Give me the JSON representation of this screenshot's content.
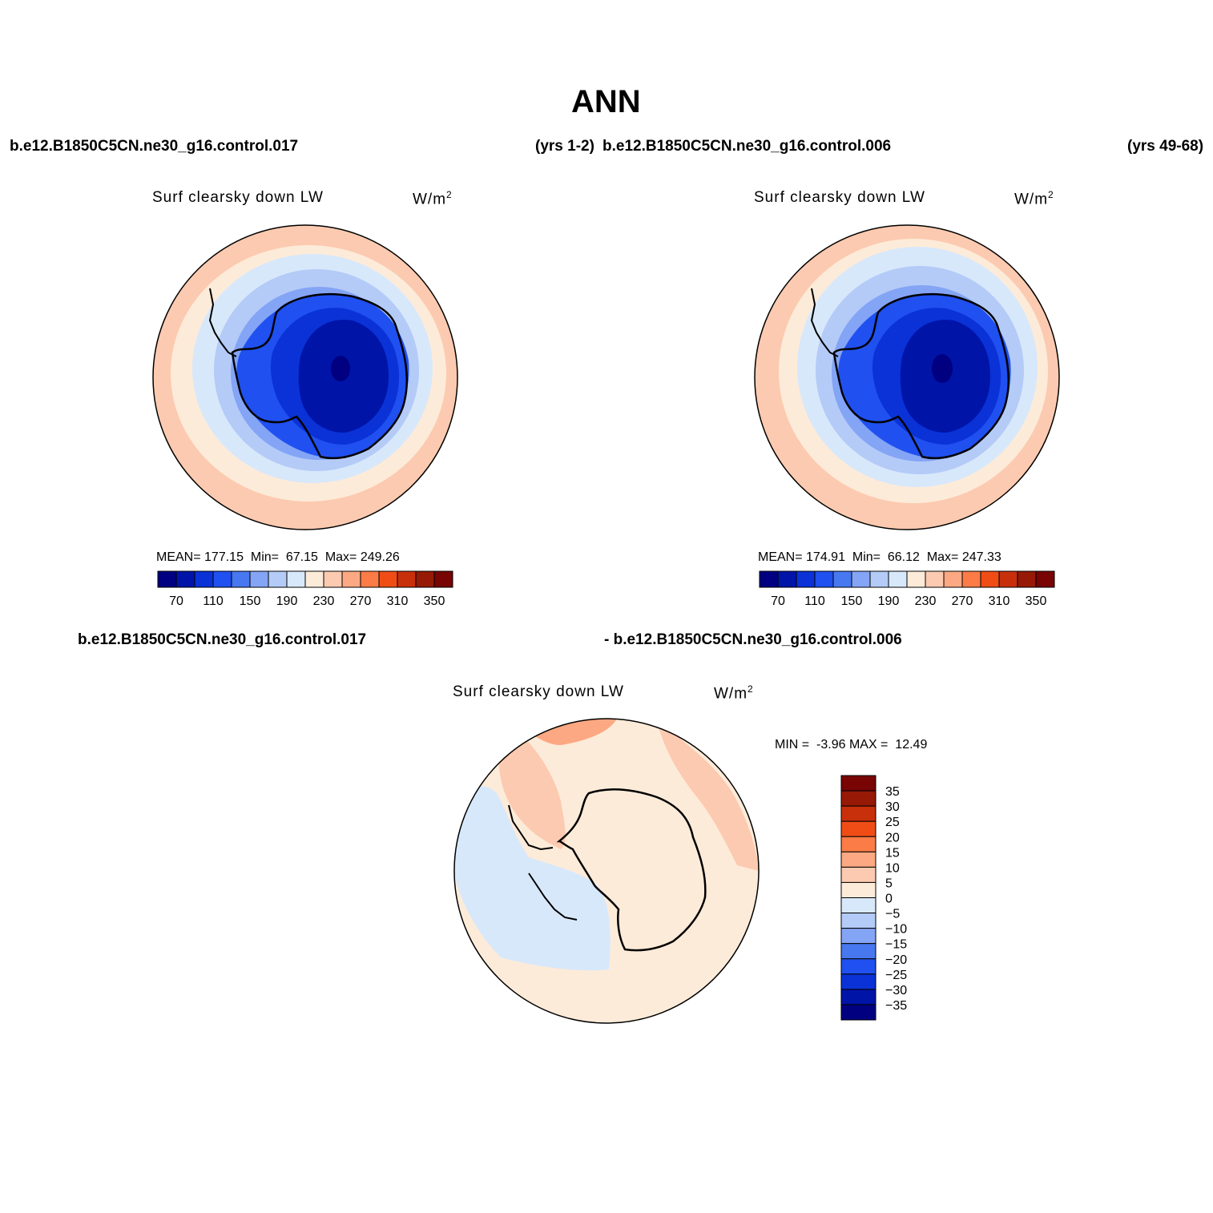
{
  "title": "ANN",
  "header": {
    "case1": "b.e12.B1850C5CN.ne30_g16.control.017",
    "case1_years": "(yrs 1-2)",
    "case2": "b.e12.B1850C5CN.ne30_g16.control.006",
    "case2_years": "(yrs 49-68)"
  },
  "diff_header": {
    "left": "b.e12.B1850C5CN.ne30_g16.control.017",
    "right": "- b.e12.B1850C5CN.ne30_g16.control.006"
  },
  "panels": [
    {
      "variable": "Surf clearsky down LW",
      "units_base": "W/m",
      "units_exp": "2",
      "stats": {
        "mean_label": "MEAN=",
        "mean": "177.15",
        "min_label": "Min=",
        "min": "67.15",
        "max_label": "Max=",
        "max": "249.26"
      }
    },
    {
      "variable": "Surf clearsky down LW",
      "units_base": "W/m",
      "units_exp": "2",
      "stats": {
        "mean_label": "MEAN=",
        "mean": "174.91",
        "min_label": "Min=",
        "min": "66.12",
        "max_label": "Max=",
        "max": "247.33"
      }
    },
    {
      "variable": "Surf clearsky down LW",
      "units_base": "W/m",
      "units_exp": "2",
      "stats": {
        "min_label": "MIN =",
        "min": "-3.96",
        "max_label": "MAX =",
        "max": "12.49"
      }
    }
  ],
  "colorbar_abs": {
    "colors": [
      "#000080",
      "#0014a8",
      "#0a32d6",
      "#2050f0",
      "#4878f0",
      "#84a4f5",
      "#b4cbf8",
      "#d8e8fb",
      "#fdebd9",
      "#fccab0",
      "#fca882",
      "#fb7c47",
      "#f04d16",
      "#c8300c",
      "#961a06",
      "#780404"
    ],
    "tick_labels": [
      "70",
      "110",
      "150",
      "190",
      "230",
      "270",
      "310",
      "350"
    ]
  },
  "colorbar_diff": {
    "colors": [
      "#000080",
      "#0014a8",
      "#0a32d6",
      "#2050f0",
      "#4878f0",
      "#84a4f5",
      "#b4cbf8",
      "#d8e8fb",
      "#fdebd9",
      "#fccab0",
      "#fca882",
      "#fb7c47",
      "#f04d16",
      "#c8300c",
      "#961a06",
      "#780404"
    ],
    "tick_labels": [
      "35",
      "30",
      "25",
      "20",
      "15",
      "10",
      "5",
      "0",
      "−5",
      "−10",
      "−15",
      "−20",
      "−25",
      "−30",
      "−35"
    ]
  }
}
